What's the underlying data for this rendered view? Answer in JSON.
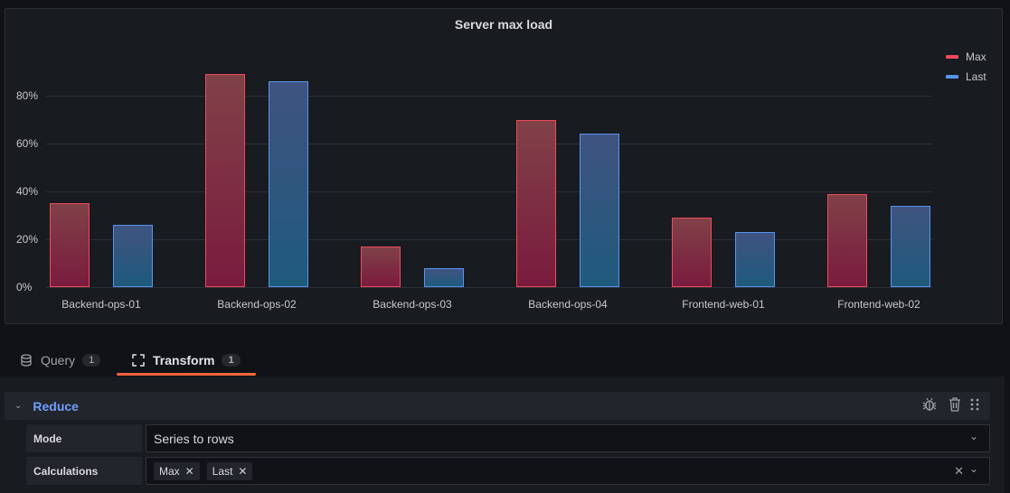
{
  "panel": {
    "title": "Server max load",
    "legend": [
      {
        "label": "Max",
        "color": "#f2495c"
      },
      {
        "label": "Last",
        "color": "#5794f2"
      }
    ],
    "y_ticks": [
      "0%",
      "20%",
      "40%",
      "60%",
      "80%"
    ],
    "categories": [
      "Backend-ops-01",
      "Backend-ops-02",
      "Backend-ops-03",
      "Backend-ops-04",
      "Frontend-web-01",
      "Frontend-web-02"
    ]
  },
  "chart_data": {
    "type": "bar",
    "title": "Server max load",
    "categories": [
      "Backend-ops-01",
      "Backend-ops-02",
      "Backend-ops-03",
      "Backend-ops-04",
      "Frontend-web-01",
      "Frontend-web-02"
    ],
    "series": [
      {
        "name": "Max",
        "color": "#f2495c",
        "values": [
          35,
          89,
          17,
          70,
          29,
          39
        ]
      },
      {
        "name": "Last",
        "color": "#5794f2",
        "values": [
          26,
          86,
          8,
          64,
          23,
          34
        ]
      }
    ],
    "xlabel": "",
    "ylabel": "",
    "yticks": [
      "0%",
      "20%",
      "40%",
      "60%",
      "80%"
    ],
    "ylim": [
      0,
      100
    ],
    "grid": true,
    "legend_position": "right"
  },
  "tabs": [
    {
      "label": "Query",
      "count": "1",
      "icon": "database-icon"
    },
    {
      "label": "Transform",
      "count": "1",
      "icon": "transform-icon"
    }
  ],
  "transform": {
    "name": "Reduce",
    "mode_label": "Mode",
    "mode_value": "Series to rows",
    "calc_label": "Calculations",
    "calcs": [
      "Max",
      "Last"
    ]
  }
}
